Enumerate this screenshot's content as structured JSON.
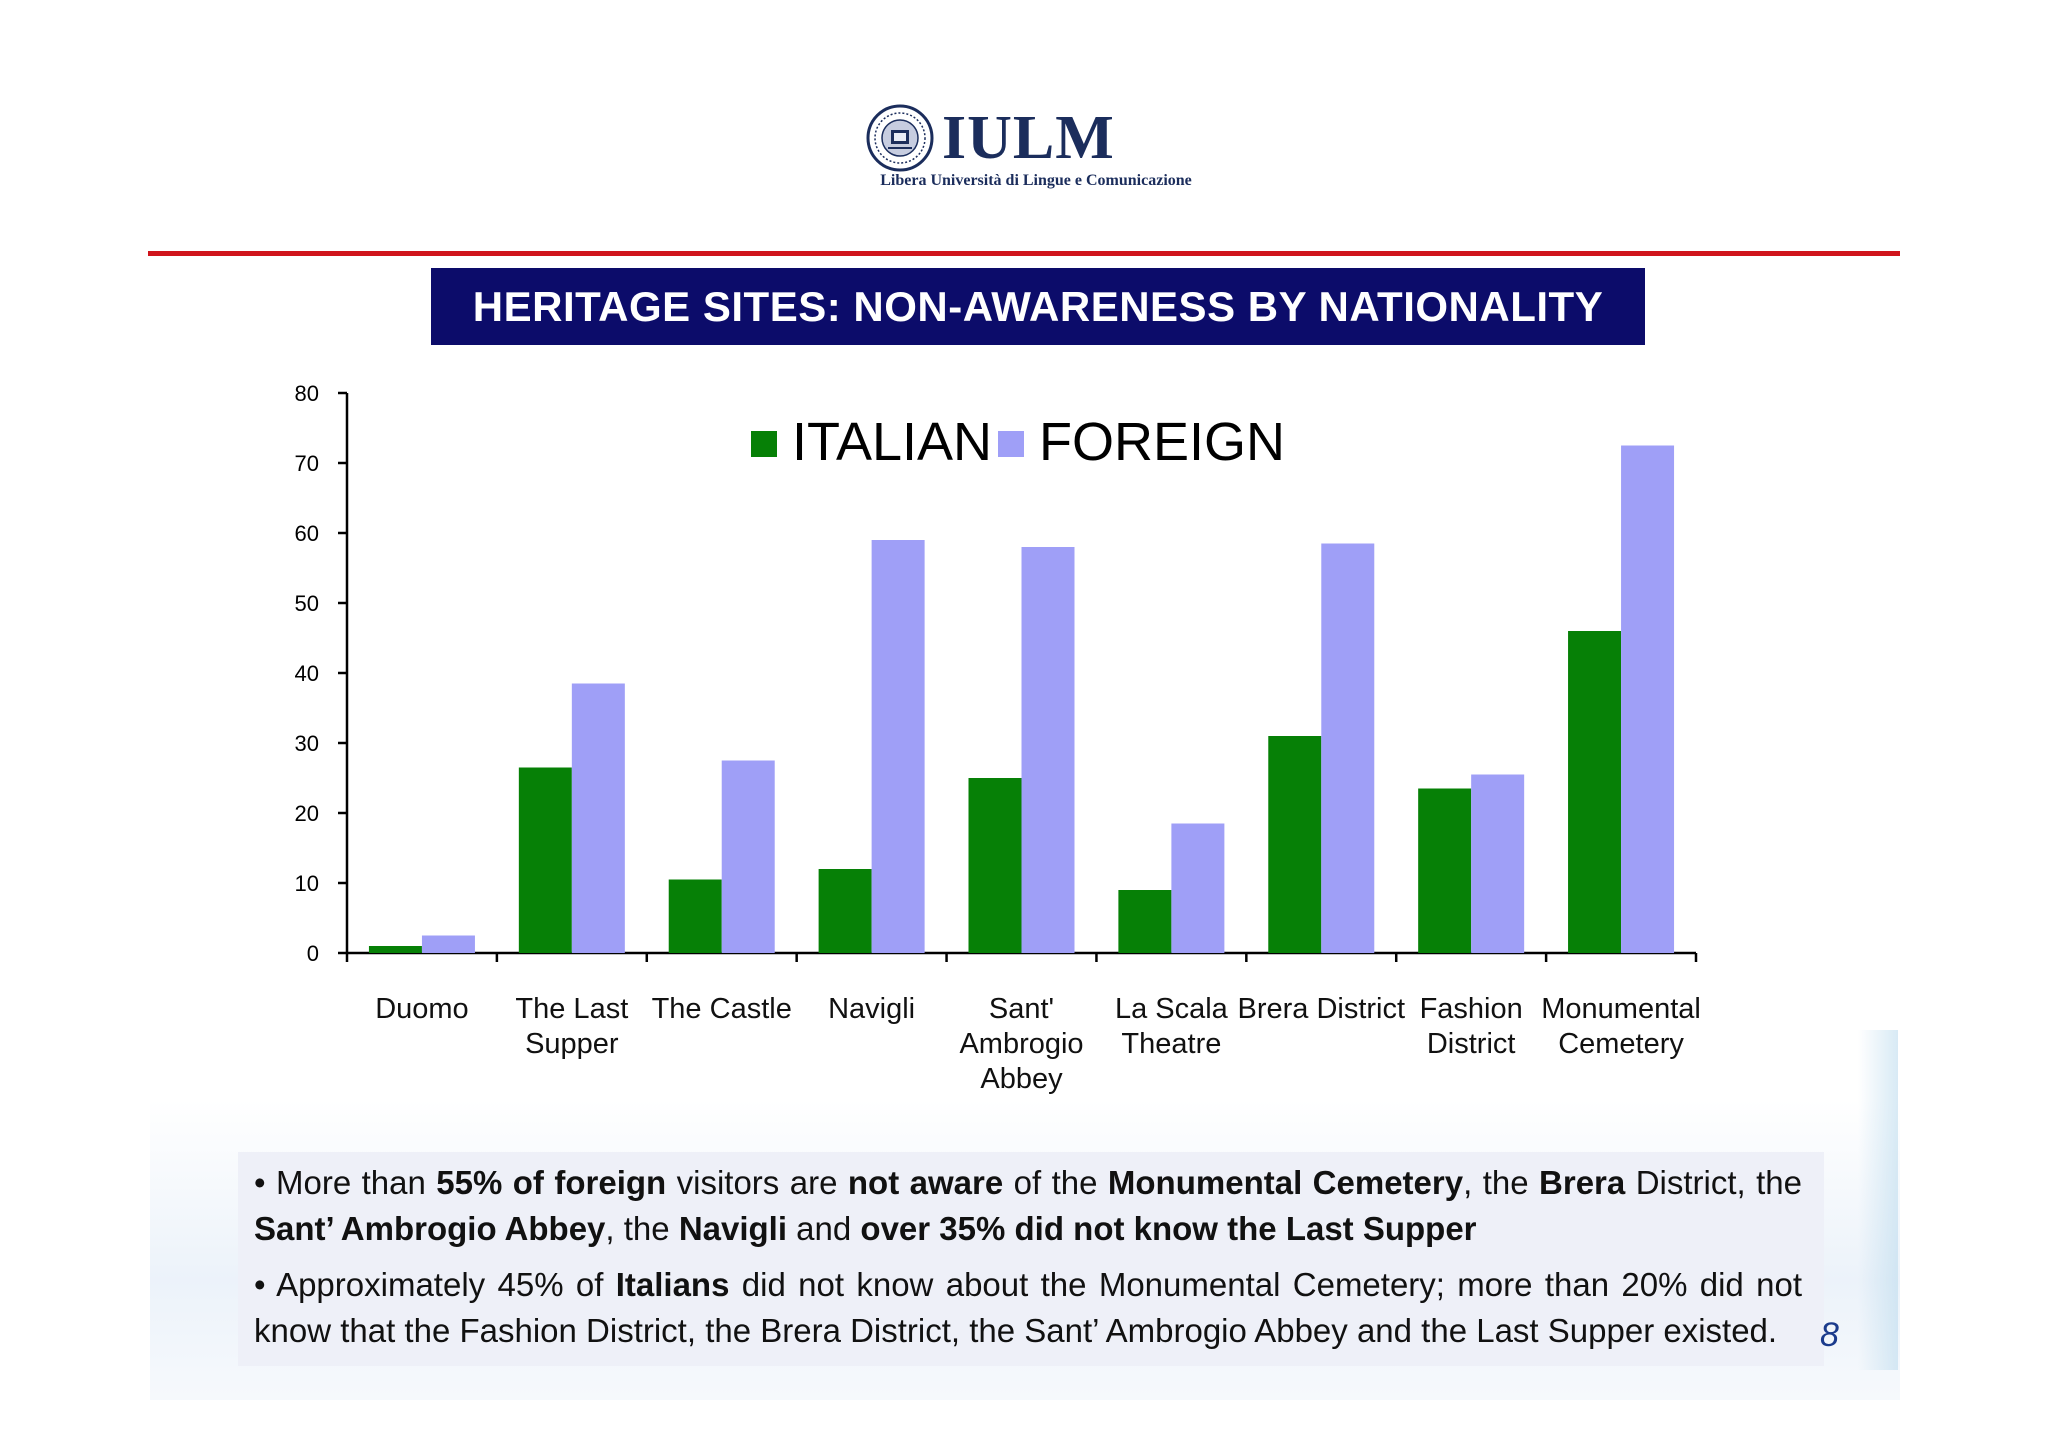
{
  "logo": {
    "name": "IULM",
    "subtitle": "Libera Università di Lingue e Comunicazione"
  },
  "title": "HERITAGE SITES: NON-AWARENESS BY NATIONALITY",
  "colors": {
    "italian": "#068006",
    "foreign": "#9f9ff7",
    "title_bar": "#0c0c6a",
    "rule": "#d0141c"
  },
  "chart_data": {
    "type": "bar",
    "categories": [
      [
        "Duomo"
      ],
      [
        "The Last",
        "Supper"
      ],
      [
        "The Castle"
      ],
      [
        "Navigli"
      ],
      [
        "Sant'",
        "Ambrogio",
        "Abbey"
      ],
      [
        "La Scala",
        "Theatre"
      ],
      [
        "Brera District"
      ],
      [
        "Fashion",
        "District"
      ],
      [
        "Monumental",
        "Cemetery"
      ]
    ],
    "series": [
      {
        "name": "ITALIAN",
        "values": [
          1,
          26.5,
          10.5,
          12,
          25,
          9,
          31,
          23.5,
          46
        ]
      },
      {
        "name": "FOREIGN",
        "values": [
          2.5,
          38.5,
          27.5,
          59,
          58,
          18.5,
          58.5,
          25.5,
          72.5
        ]
      }
    ],
    "ylim": [
      0,
      80
    ],
    "yticks": [
      0,
      10,
      20,
      30,
      40,
      50,
      60,
      70,
      80
    ],
    "legend_position": "top-center",
    "grid": false
  },
  "notes": {
    "bullet1": {
      "p1": "• More than ",
      "b1": "55% of foreign",
      "p2": " visitors are ",
      "b2": "not aware",
      "p3": " of the ",
      "b3": "Monumental Cemetery",
      "p4": ", the ",
      "b4": "Brera",
      "p5": " District, the ",
      "b5": "Sant’ Ambrogio Abbey",
      "p6": ", the ",
      "b6": "Navigli",
      "p7": " and ",
      "b7": "over 35% did not know the Last Supper"
    },
    "bullet2": {
      "p1": "• Approximately 45% of ",
      "b1": "Italians",
      "p2": " did not know about the Monumental Cemetery; more than 20% did not know that  the Fashion District, the Brera District, the Sant’ Ambrogio Abbey and the Last Supper existed."
    }
  },
  "page_number": "8"
}
